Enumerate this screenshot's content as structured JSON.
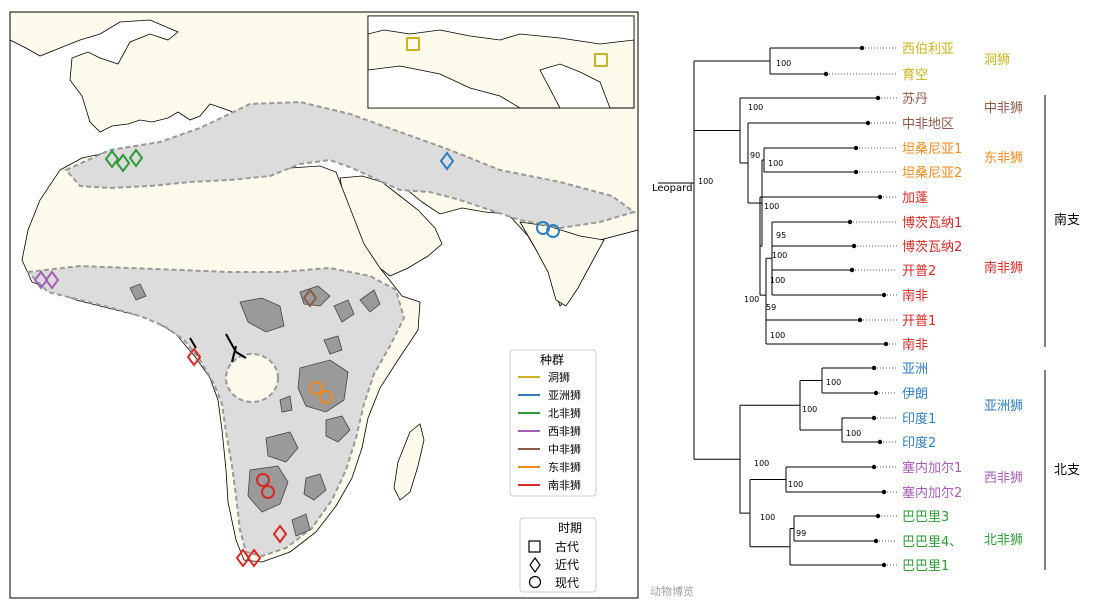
{
  "map": {
    "legend_population": {
      "title": "种群",
      "items": [
        {
          "label": "洞狮",
          "color": "#c8b41e"
        },
        {
          "label": "亚洲狮",
          "color": "#2e7ec1"
        },
        {
          "label": "北非狮",
          "color": "#2e9a38"
        },
        {
          "label": "西非狮",
          "color": "#a55fb5"
        },
        {
          "label": "中非狮",
          "color": "#8c5a4a"
        },
        {
          "label": "东非狮",
          "color": "#ef8a1e"
        },
        {
          "label": "南非狮",
          "color": "#d62a26"
        }
      ]
    },
    "legend_period": {
      "title": "时期",
      "items": [
        {
          "label": "古代",
          "shape": "square"
        },
        {
          "label": "近代",
          "shape": "diamond"
        },
        {
          "label": "现代",
          "shape": "circle"
        }
      ]
    }
  },
  "tree": {
    "outgroup": "Leopard",
    "leaves": [
      {
        "label": "西伯利亚",
        "color": "#c8b41e"
      },
      {
        "label": "育空",
        "color": "#c8b41e"
      },
      {
        "label": "苏丹",
        "color": "#8c5a4a"
      },
      {
        "label": "中非地区",
        "color": "#8c5a4a"
      },
      {
        "label": "坦桑尼亚1",
        "color": "#ef8a1e"
      },
      {
        "label": "坦桑尼亚2",
        "color": "#ef8a1e"
      },
      {
        "label": "加蓬",
        "color": "#d62a26"
      },
      {
        "label": "博茨瓦纳1",
        "color": "#d62a26"
      },
      {
        "label": "博茨瓦纳2",
        "color": "#d62a26"
      },
      {
        "label": "开普2",
        "color": "#d62a26"
      },
      {
        "label": "南非",
        "color": "#d62a26"
      },
      {
        "label": "开普1",
        "color": "#d62a26"
      },
      {
        "label": "南非",
        "color": "#d62a26"
      },
      {
        "label": "亚洲",
        "color": "#2e7ec1"
      },
      {
        "label": "伊朗",
        "color": "#2e7ec1"
      },
      {
        "label": "印度1",
        "color": "#2e7ec1"
      },
      {
        "label": "印度2",
        "color": "#2e7ec1"
      },
      {
        "label": "塞内加尔1",
        "color": "#a55fb5"
      },
      {
        "label": "塞内加尔2",
        "color": "#a55fb5"
      },
      {
        "label": "巴巴里3",
        "color": "#2e9a38"
      },
      {
        "label": "巴巴里4、",
        "color": "#2e9a38"
      },
      {
        "label": "巴巴里1",
        "color": "#2e9a38"
      }
    ],
    "bootstrap": [
      "100",
      "100",
      "100",
      "90",
      "100",
      "100",
      "95",
      "100",
      "100",
      "59",
      "100",
      "100",
      "100",
      "100",
      "100",
      "100",
      "100",
      "99",
      "100"
    ],
    "groups": [
      {
        "label": "洞狮",
        "color": "#c8b41e"
      },
      {
        "label": "中非狮",
        "color": "#8c5a4a"
      },
      {
        "label": "东非狮",
        "color": "#ef8a1e"
      },
      {
        "label": "南非狮",
        "color": "#d62a26"
      },
      {
        "label": "亚洲狮",
        "color": "#2e7ec1"
      },
      {
        "label": "西非狮",
        "color": "#a55fb5"
      },
      {
        "label": "北非狮",
        "color": "#2e9a38"
      }
    ],
    "branches": [
      "南支",
      "北支"
    ]
  },
  "watermark": "动物博览"
}
